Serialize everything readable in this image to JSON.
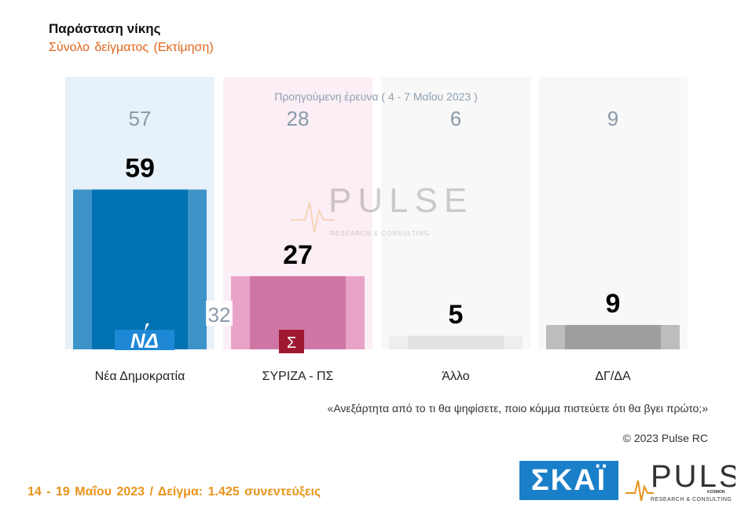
{
  "header": {
    "title": "Παράσταση νίκης",
    "subtitle": "Σύνολο δείγματος   (Εκτίμηση)"
  },
  "chart_data": {
    "type": "bar",
    "categories": [
      "Νέα Δημοκρατία",
      "ΣΥΡΙΖΑ - ΠΣ",
      "Άλλο",
      "ΔΓ/ΔΑ"
    ],
    "values": [
      59,
      27,
      5,
      9
    ],
    "previous_values": [
      57,
      28,
      6,
      9
    ],
    "previous_caption": "Προηγούμενη έρευνα ( 4 - 7 Μαΐου  2023 )",
    "difference_label": "32",
    "ylim": [
      0,
      100
    ],
    "colors": {
      "nd_outer": "#3d94c9",
      "nd_inner": "#0072b2",
      "syriza_outer": "#e8a3c6",
      "syriza_inner": "#cf76a6",
      "other_outer": "#eeeeee",
      "other_inner": "#e2e2e2",
      "dkna_outer": "#bdbdbd",
      "dkna_inner": "#9e9e9e",
      "bg_nd": "#e7f1f9",
      "bg_syriza": "#fbeef5",
      "bg_other": "#f8f8f8",
      "bg_dkna": "#f8f8f8"
    }
  },
  "question": "«Ανεξάρτητα από το τι θα ψηφίσετε, ποιο κόμμα πιστεύετε ότι θα βγει πρώτο;»",
  "copyright": "© 2023 Pulse RC",
  "footer": "14 - 19  Μαΐου  2023  /  Δείγμα:  1.425 συνεντεύξεις",
  "logos": {
    "skai": "ΣΚΑΪ",
    "pulse": "PULSE",
    "pulse_sub": "RESEARCH & CONSULTING",
    "pulse_kosmos": "KOSMON",
    "nd_logo": "ΝΔ",
    "syriza_logo": "Σ"
  }
}
